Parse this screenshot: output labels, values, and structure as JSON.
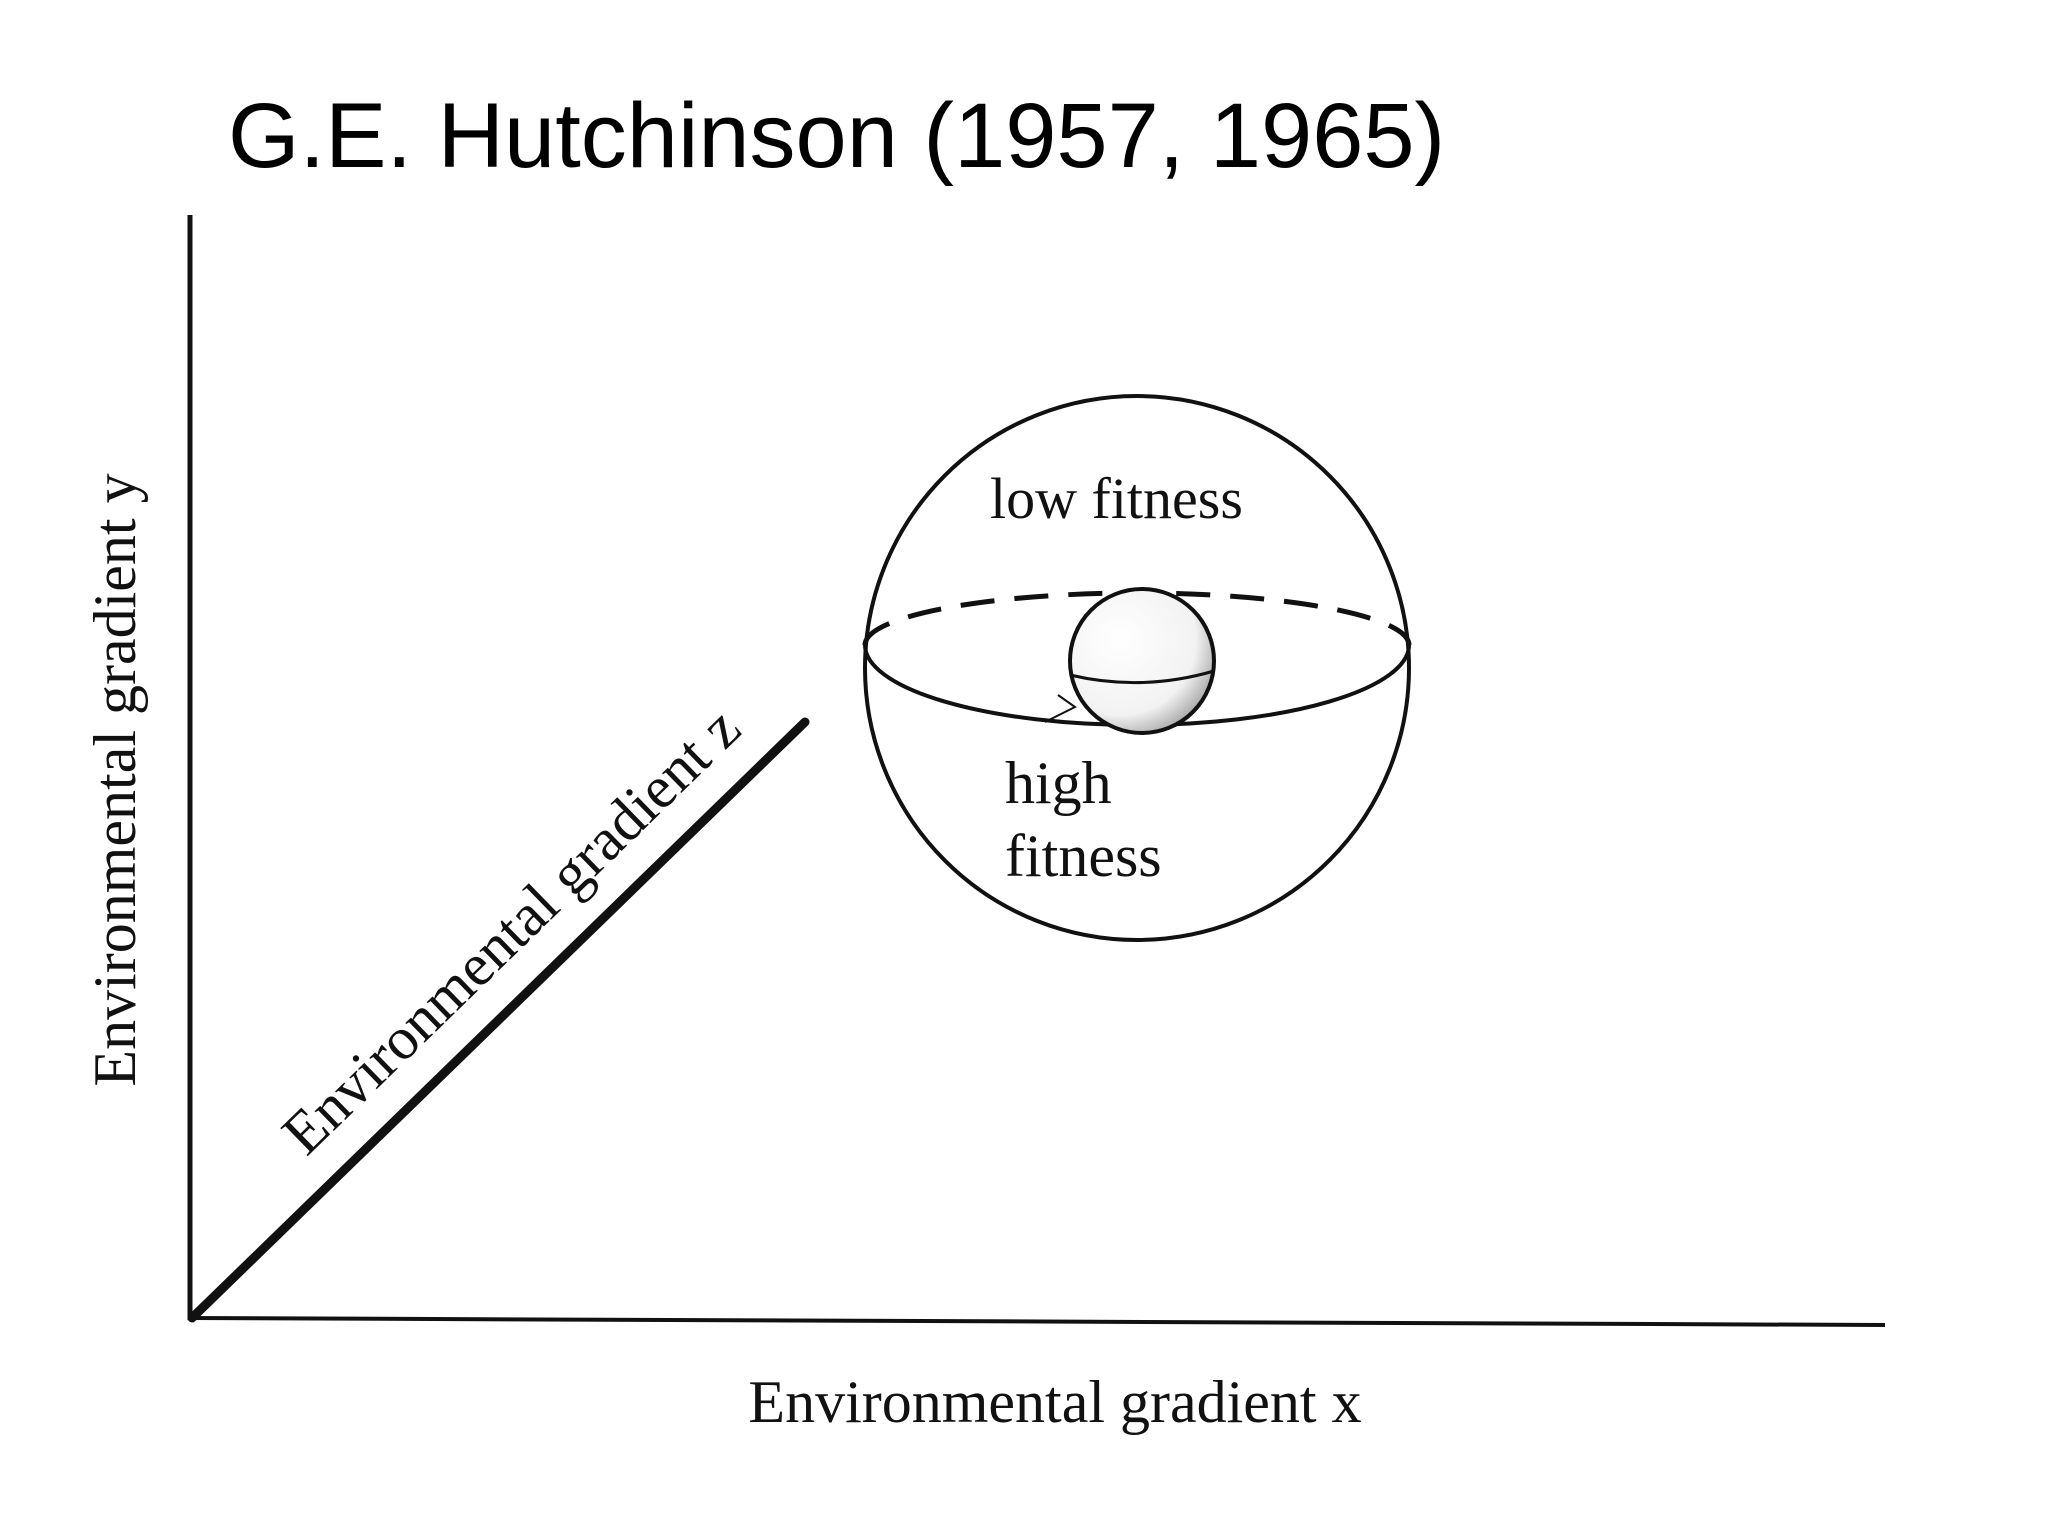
{
  "title": "G.E. Hutchinson (1957, 1965)",
  "diagram": {
    "x_axis_label": "Environmental gradient x",
    "y_axis_label": "Environmental gradient y",
    "z_axis_label": "Environmental gradient z",
    "outer_region_label": "low fitness",
    "inner_region_label_line1": "high",
    "inner_region_label_line2": "fitness",
    "ink_color": "#111111",
    "background_color": "#ffffff"
  }
}
